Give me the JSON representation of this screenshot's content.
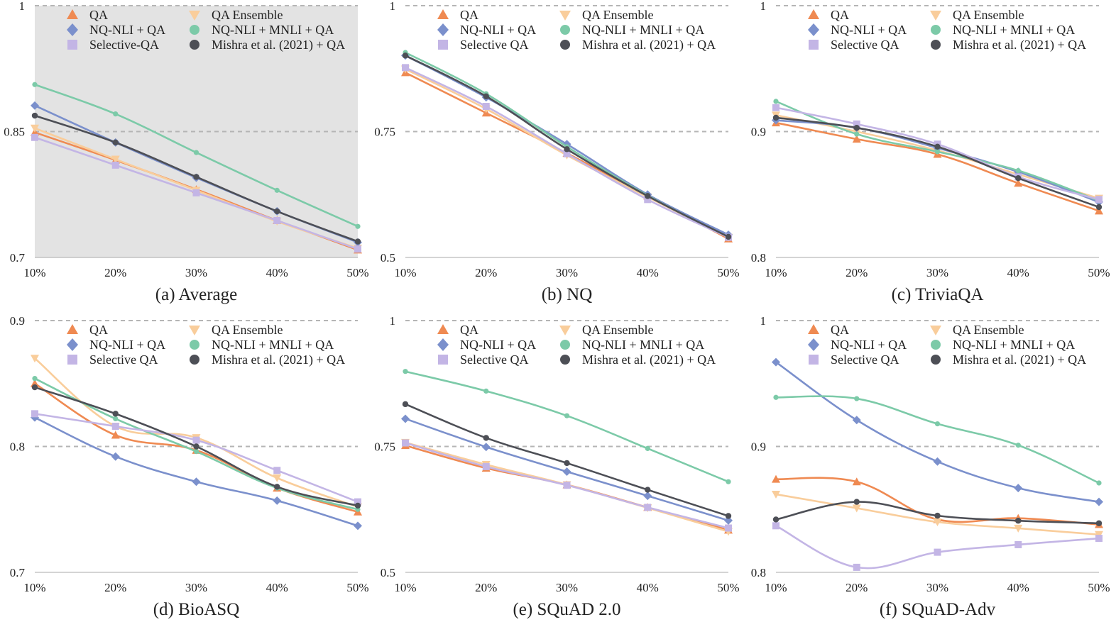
{
  "colors": {
    "QA": "#ef8a52",
    "QA Ensemble": "#f9cd9b",
    "NQ-NLI + QA": "#7b90cc",
    "NQ-NLI + MNLI + QA": "#7ccaa8",
    "Selective QA": "#c3b5e5",
    "Mishra et al. (2021) + QA": "#4d4f56",
    "grid": "#b5b5b5",
    "shade": "#e3e3e3"
  },
  "chart_data": [
    {
      "id": "a",
      "type": "line",
      "title": "(a) Average",
      "shaded": true,
      "categories": [
        "10%",
        "20%",
        "30%",
        "40%",
        "50%"
      ],
      "ylim": [
        0.7,
        1.0
      ],
      "ytick_labels": [
        "0.7",
        "0.85",
        "1"
      ],
      "grid_lines": [
        0.85,
        1.0
      ],
      "legend": [
        "QA",
        "QA Ensemble",
        "NQ-NLI + QA",
        "NQ-NLI + MNLI + QA",
        "Selective-QA",
        "Mishra et al. (2021) + QA"
      ],
      "series": [
        {
          "name": "QA",
          "key": "QA",
          "marker": "triangle-up",
          "values": [
            0.849,
            0.816,
            0.781,
            0.744,
            0.709
          ]
        },
        {
          "name": "QA Ensemble",
          "key": "QA Ensemble",
          "marker": "triangle-down",
          "values": [
            0.854,
            0.817,
            0.78,
            0.743,
            0.711
          ]
        },
        {
          "name": "NQ-NLI + QA",
          "key": "NQ-NLI + QA",
          "marker": "diamond",
          "values": [
            0.881,
            0.837,
            0.795,
            0.755,
            0.718
          ]
        },
        {
          "name": "NQ-NLI + MNLI + QA",
          "key": "NQ-NLI + MNLI + QA",
          "marker": "circle-small",
          "values": [
            0.906,
            0.871,
            0.825,
            0.78,
            0.737
          ]
        },
        {
          "name": "Selective-QA",
          "key": "Selective QA",
          "marker": "square",
          "values": [
            0.843,
            0.81,
            0.777,
            0.744,
            0.71
          ]
        },
        {
          "name": "Mishra et al. (2021) + QA",
          "key": "Mishra et al. (2021) + QA",
          "marker": "circle",
          "values": [
            0.869,
            0.837,
            0.796,
            0.755,
            0.719
          ]
        }
      ]
    },
    {
      "id": "b",
      "type": "line",
      "title": "(b) NQ",
      "shaded": false,
      "categories": [
        "10%",
        "20%",
        "30%",
        "40%",
        "50%"
      ],
      "ylim": [
        0.5,
        1.0
      ],
      "ytick_labels": [
        "0.5",
        "0.75",
        "1"
      ],
      "grid_lines": [
        0.75,
        1.0
      ],
      "legend": [
        "QA",
        "QA Ensemble",
        "NQ-NLI + QA",
        "NQ-NLI + MNLI + QA",
        "Selective QA",
        "Mishra et al. (2021) + QA"
      ],
      "series": [
        {
          "name": "QA",
          "key": "QA",
          "marker": "triangle-up",
          "values": [
            0.867,
            0.787,
            0.707,
            0.622,
            0.537
          ]
        },
        {
          "name": "QA Ensemble",
          "key": "QA Ensemble",
          "marker": "triangle-down",
          "values": [
            0.874,
            0.795,
            0.703,
            0.62,
            0.54
          ]
        },
        {
          "name": "NQ-NLI + QA",
          "key": "NQ-NLI + QA",
          "marker": "diamond",
          "values": [
            0.901,
            0.818,
            0.725,
            0.625,
            0.545
          ]
        },
        {
          "name": "NQ-NLI + MNLI + QA",
          "key": "NQ-NLI + MNLI + QA",
          "marker": "circle-small",
          "values": [
            0.907,
            0.825,
            0.72,
            0.623,
            0.54
          ]
        },
        {
          "name": "Selective QA",
          "key": "Selective QA",
          "marker": "square",
          "values": [
            0.877,
            0.8,
            0.706,
            0.615,
            0.54
          ]
        },
        {
          "name": "Mishra et al. (2021) + QA",
          "key": "Mishra et al. (2021) + QA",
          "marker": "circle",
          "values": [
            0.901,
            0.82,
            0.715,
            0.622,
            0.541
          ]
        }
      ]
    },
    {
      "id": "c",
      "type": "line",
      "title": "(c) TriviaQA",
      "shaded": false,
      "categories": [
        "10%",
        "20%",
        "30%",
        "40%",
        "50%"
      ],
      "ylim": [
        0.8,
        1.0
      ],
      "ytick_labels": [
        "0.8",
        "0.9",
        "1"
      ],
      "grid_lines": [
        0.9,
        1.0
      ],
      "legend": [
        "QA",
        "QA Ensemble",
        "NQ-NLI + QA",
        "NQ-NLI + MNLI + QA",
        "Selective QA",
        "Mishra et al. (2021) + QA"
      ],
      "series": [
        {
          "name": "QA",
          "key": "QA",
          "marker": "triangle-up",
          "values": [
            0.907,
            0.894,
            0.882,
            0.859,
            0.837
          ]
        },
        {
          "name": "QA Ensemble",
          "key": "QA Ensemble",
          "marker": "triangle-down",
          "values": [
            0.913,
            0.9,
            0.885,
            0.866,
            0.847
          ]
        },
        {
          "name": "NQ-NLI + QA",
          "key": "NQ-NLI + QA",
          "marker": "diamond",
          "values": [
            0.909,
            0.903,
            0.887,
            0.868,
            0.844
          ]
        },
        {
          "name": "NQ-NLI + MNLI + QA",
          "key": "NQ-NLI + MNLI + QA",
          "marker": "circle-small",
          "values": [
            0.924,
            0.898,
            0.884,
            0.869,
            0.845
          ]
        },
        {
          "name": "Selective QA",
          "key": "Selective QA",
          "marker": "square",
          "values": [
            0.919,
            0.906,
            0.89,
            0.864,
            0.846
          ]
        },
        {
          "name": "Mishra et al. (2021) + QA",
          "key": "Mishra et al. (2021) + QA",
          "marker": "circle",
          "values": [
            0.911,
            0.903,
            0.888,
            0.863,
            0.84
          ]
        }
      ]
    },
    {
      "id": "d",
      "type": "line",
      "title": "(d) BioASQ",
      "shaded": false,
      "categories": [
        "10%",
        "20%",
        "30%",
        "40%",
        "50%"
      ],
      "ylim": [
        0.7,
        0.9
      ],
      "ytick_labels": [
        "0.7",
        "0.8",
        "0.9"
      ],
      "grid_lines": [
        0.8,
        0.9
      ],
      "legend": [
        "QA",
        "QA Ensemble",
        "NQ-NLI + QA",
        "NQ-NLI + MNLI + QA",
        "Selective QA",
        "Mishra et al. (2021) + QA"
      ],
      "series": [
        {
          "name": "QA",
          "key": "QA",
          "marker": "triangle-up",
          "values": [
            0.85,
            0.809,
            0.797,
            0.767,
            0.748
          ]
        },
        {
          "name": "QA Ensemble",
          "key": "QA Ensemble",
          "marker": "triangle-down",
          "values": [
            0.87,
            0.816,
            0.807,
            0.775,
            0.752
          ]
        },
        {
          "name": "NQ-NLI + QA",
          "key": "NQ-NLI + QA",
          "marker": "diamond",
          "values": [
            0.823,
            0.792,
            0.772,
            0.757,
            0.737
          ]
        },
        {
          "name": "NQ-NLI + MNLI + QA",
          "key": "NQ-NLI + MNLI + QA",
          "marker": "circle-small",
          "values": [
            0.854,
            0.822,
            0.796,
            0.767,
            0.75
          ]
        },
        {
          "name": "Selective QA",
          "key": "Selective QA",
          "marker": "square",
          "values": [
            0.826,
            0.816,
            0.805,
            0.781,
            0.756
          ]
        },
        {
          "name": "Mishra et al. (2021) + QA",
          "key": "Mishra et al. (2021) + QA",
          "marker": "circle",
          "values": [
            0.847,
            0.826,
            0.8,
            0.768,
            0.753
          ]
        }
      ]
    },
    {
      "id": "e",
      "type": "line",
      "title": "(e) SQuAD 2.0",
      "shaded": false,
      "categories": [
        "10%",
        "20%",
        "30%",
        "40%",
        "50%"
      ],
      "ylim": [
        0.5,
        1.0
      ],
      "ytick_labels": [
        "0.5",
        "0.75",
        "1"
      ],
      "grid_lines": [
        0.75,
        1.0
      ],
      "legend": [
        "QA",
        "QA Ensemble",
        "NQ-NLI + QA",
        "NQ-NLI + MNLI + QA",
        "Selective QA",
        "Mishra et al. (2021) + QA"
      ],
      "series": [
        {
          "name": "QA",
          "key": "QA",
          "marker": "triangle-up",
          "values": [
            0.752,
            0.707,
            0.674,
            0.629,
            0.584
          ]
        },
        {
          "name": "QA Ensemble",
          "key": "QA Ensemble",
          "marker": "triangle-down",
          "values": [
            0.758,
            0.714,
            0.674,
            0.628,
            0.581
          ]
        },
        {
          "name": "NQ-NLI + QA",
          "key": "NQ-NLI + QA",
          "marker": "diamond",
          "values": [
            0.805,
            0.749,
            0.7,
            0.652,
            0.603
          ]
        },
        {
          "name": "NQ-NLI + MNLI + QA",
          "key": "NQ-NLI + MNLI + QA",
          "marker": "circle-small",
          "values": [
            0.899,
            0.86,
            0.811,
            0.746,
            0.68
          ]
        },
        {
          "name": "Selective QA",
          "key": "Selective QA",
          "marker": "square",
          "values": [
            0.757,
            0.71,
            0.673,
            0.629,
            0.588
          ]
        },
        {
          "name": "Mishra et al. (2021) + QA",
          "key": "Mishra et al. (2021) + QA",
          "marker": "circle",
          "values": [
            0.834,
            0.767,
            0.717,
            0.664,
            0.612
          ]
        }
      ]
    },
    {
      "id": "f",
      "type": "line",
      "title": "(f) SQuAD-Adv",
      "shaded": false,
      "categories": [
        "10%",
        "20%",
        "30%",
        "40%",
        "50%"
      ],
      "ylim": [
        0.8,
        1.0
      ],
      "ytick_labels": [
        "0.8",
        "0.9",
        "1"
      ],
      "grid_lines": [
        0.9,
        1.0
      ],
      "legend": [
        "QA",
        "QA Ensemble",
        "NQ-NLI + QA",
        "NQ-NLI + MNLI + QA",
        "Selective QA",
        "Mishra et al. (2021) + QA"
      ],
      "series": [
        {
          "name": "QA",
          "key": "QA",
          "marker": "triangle-up",
          "values": [
            0.874,
            0.872,
            0.842,
            0.843,
            0.838
          ]
        },
        {
          "name": "QA Ensemble",
          "key": "QA Ensemble",
          "marker": "triangle-down",
          "values": [
            0.862,
            0.851,
            0.84,
            0.835,
            0.83
          ]
        },
        {
          "name": "NQ-NLI + QA",
          "key": "NQ-NLI + QA",
          "marker": "diamond",
          "values": [
            0.967,
            0.921,
            0.888,
            0.867,
            0.856
          ]
        },
        {
          "name": "NQ-NLI + MNLI + QA",
          "key": "NQ-NLI + MNLI + QA",
          "marker": "circle-small",
          "values": [
            0.939,
            0.938,
            0.918,
            0.901,
            0.871
          ]
        },
        {
          "name": "Selective QA",
          "key": "Selective QA",
          "marker": "square",
          "values": [
            0.837,
            0.804,
            0.816,
            0.822,
            0.827
          ]
        },
        {
          "name": "Mishra et al. (2021) + QA",
          "key": "Mishra et al. (2021) + QA",
          "marker": "circle",
          "values": [
            0.842,
            0.856,
            0.845,
            0.841,
            0.839
          ]
        }
      ]
    }
  ]
}
